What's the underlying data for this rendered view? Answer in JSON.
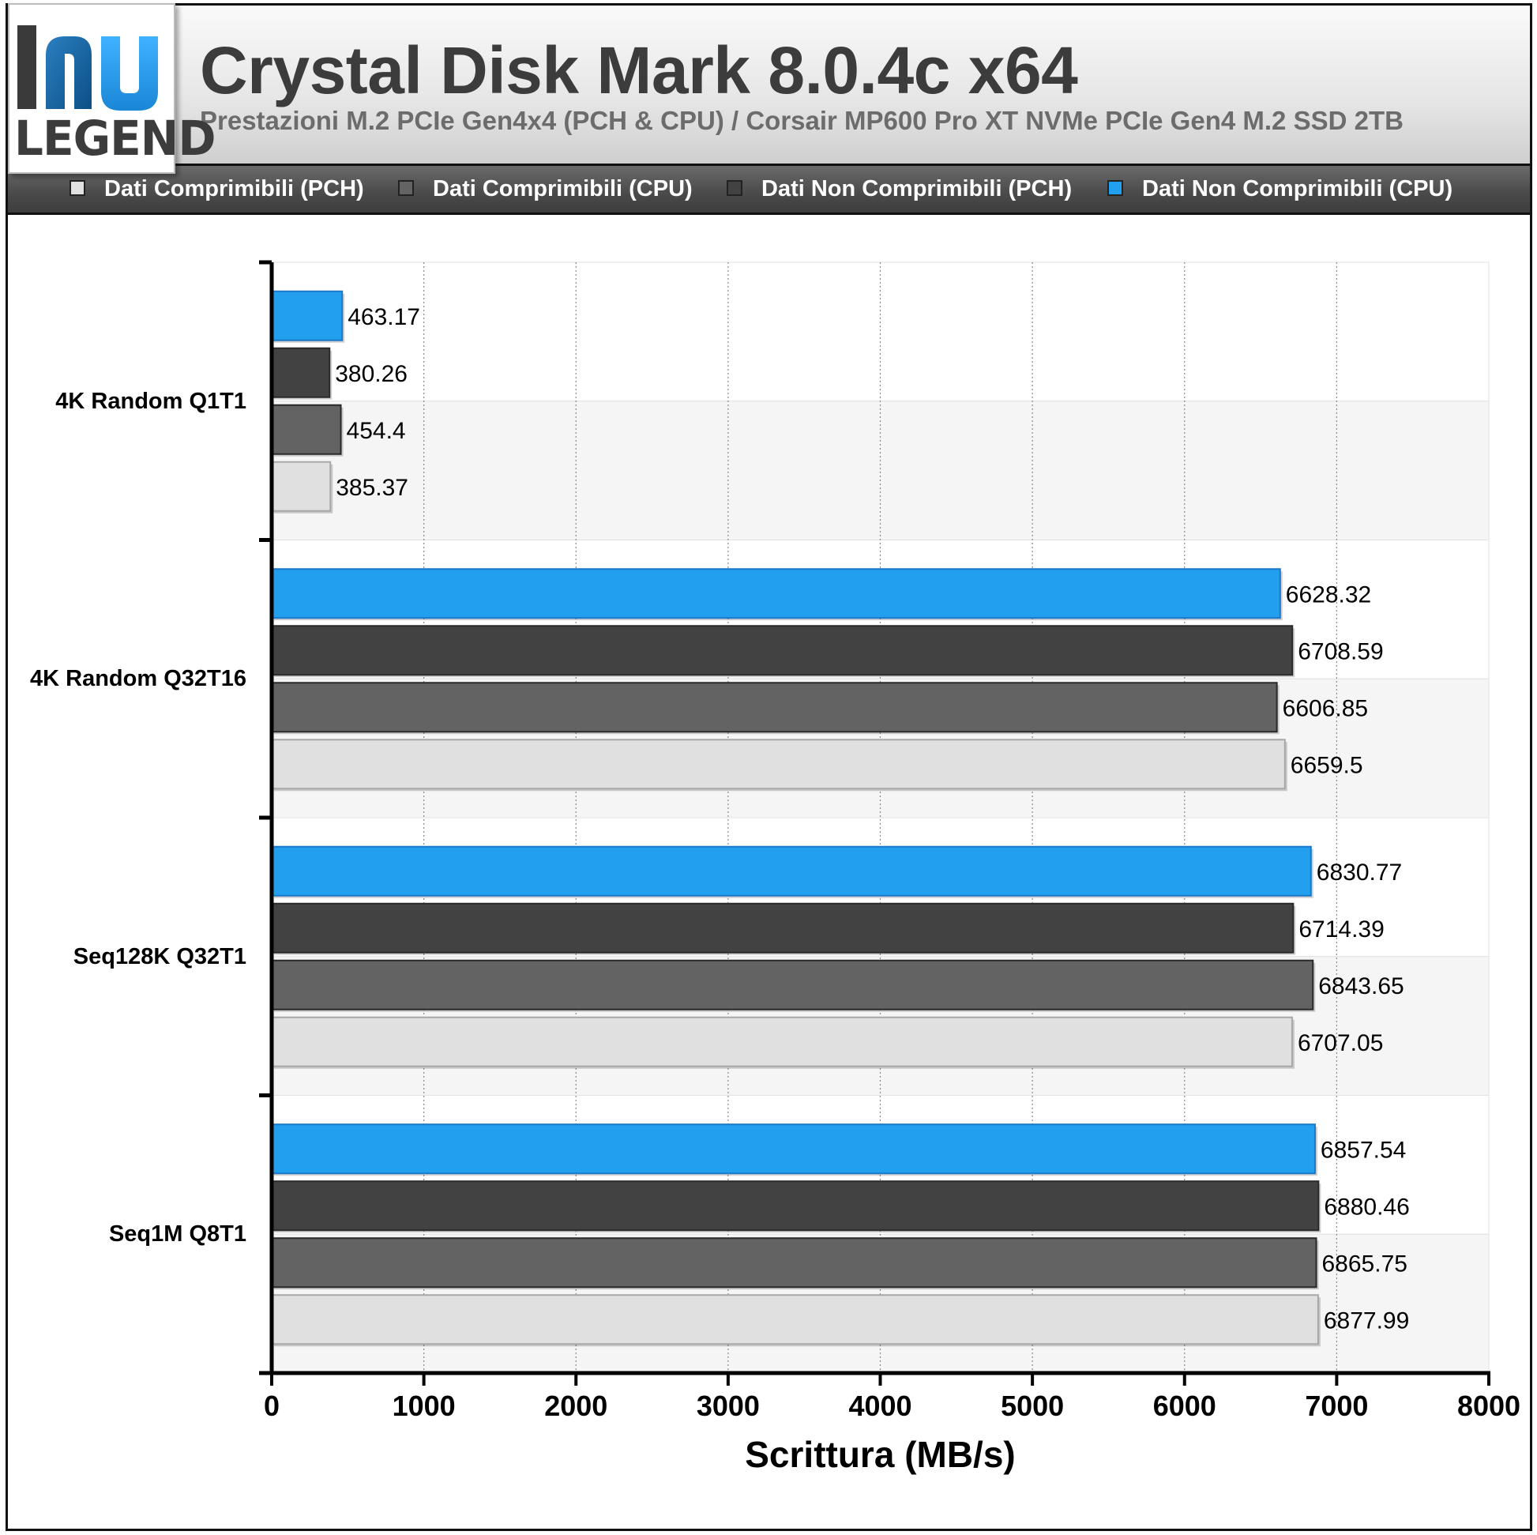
{
  "header": {
    "logo_text": "LEGEND",
    "title": "Crystal Disk Mark 8.0.4c x64",
    "subtitle": "Prestazioni M.2 PCIe Gen4x4 (PCH & CPU) / Corsair MP600 Pro XT NVMe PCIe Gen4 M.2 SSD 2TB"
  },
  "legend": [
    {
      "label": "Dati Comprimibili (PCH)",
      "color": "#e0e0e0"
    },
    {
      "label": "Dati Comprimibili (CPU)",
      "color": "#636363"
    },
    {
      "label": "Dati Non Comprimibili (PCH)",
      "color": "#424242"
    },
    {
      "label": "Dati Non Comprimibili (CPU)",
      "color": "#239ff0"
    }
  ],
  "chart_data": {
    "type": "bar",
    "orientation": "horizontal",
    "title": "Crystal Disk Mark 8.0.4c x64",
    "subtitle": "Prestazioni M.2 PCIe Gen4x4 (PCH & CPU) / Corsair MP600 Pro XT NVMe PCIe Gen4 M.2 SSD 2TB",
    "xlabel": "Scrittura (MB/s)",
    "ylabel": "",
    "xlim": [
      0,
      8000
    ],
    "xticks": [
      "0",
      "1000",
      "2000",
      "3000",
      "4000",
      "5000",
      "6000",
      "7000",
      "8000"
    ],
    "grid": "vertical dotted",
    "legend_position": "top",
    "categories": [
      "4K Random Q1T1",
      "4K Random Q32T16",
      "Seq128K Q32T1",
      "Seq1M Q8T1"
    ],
    "series": [
      {
        "name": "Dati Non Comprimibili (CPU)",
        "color": "#239ff0",
        "values": [
          463.17,
          6628.32,
          6830.77,
          6857.54
        ],
        "labels": [
          "463.17",
          "6628.32",
          "6830.77",
          "6857.54"
        ]
      },
      {
        "name": "Dati Non Comprimibili (PCH)",
        "color": "#424242",
        "values": [
          380.26,
          6708.59,
          6714.39,
          6880.46
        ],
        "labels": [
          "380.26",
          "6708.59",
          "6714.39",
          "6880.46"
        ]
      },
      {
        "name": "Dati Comprimibili (CPU)",
        "color": "#636363",
        "values": [
          454.4,
          6606.85,
          6843.65,
          6865.75
        ],
        "labels": [
          "454.4",
          "6606.85",
          "6843.65",
          "6865.75"
        ]
      },
      {
        "name": "Dati Comprimibili (PCH)",
        "color": "#e0e0e0",
        "values": [
          385.37,
          6659.5,
          6707.05,
          6877.99
        ],
        "labels": [
          "385.37",
          "6659.5",
          "6707.05",
          "6877.99"
        ]
      }
    ]
  }
}
